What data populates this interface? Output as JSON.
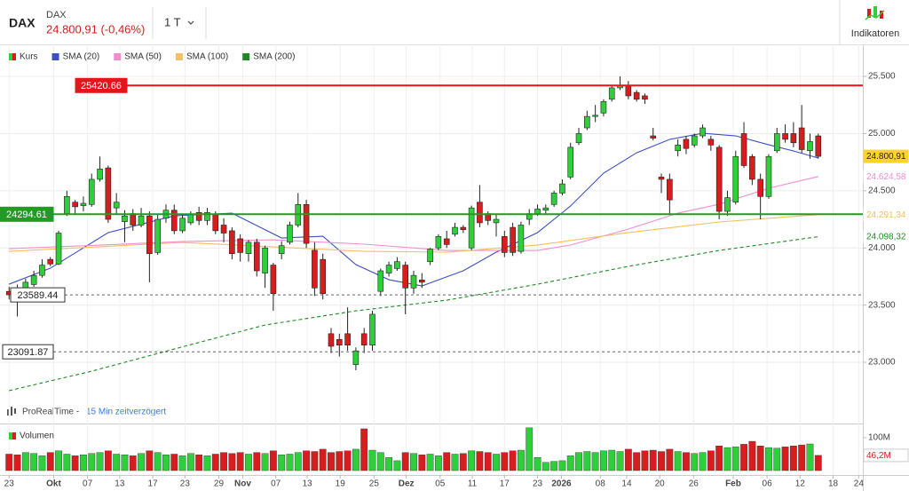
{
  "header": {
    "symbol": "DAX",
    "name": "DAX",
    "quote": "24.800,91 (-0,46%)",
    "interval": "1 T",
    "indicators_button": "Indikatoren"
  },
  "note": {
    "source": "ProRealTime -",
    "delay": "15 Min zeitverzögert"
  },
  "chart_data": [
    {
      "type": "candlestick",
      "name": "Kurs",
      "up_color": "#2fcf3c",
      "down_color": "#d71d1d",
      "x": [
        0,
        1,
        2,
        3,
        4,
        5,
        6,
        7,
        8,
        9,
        10,
        11,
        12,
        13,
        14,
        15,
        16,
        17,
        18,
        19,
        20,
        21,
        22,
        23,
        24,
        25,
        26,
        27,
        28,
        29,
        30,
        31,
        32,
        33,
        34,
        35,
        36,
        37,
        38,
        39,
        40,
        41,
        42,
        43,
        44,
        45,
        46,
        47,
        48,
        49,
        50,
        51,
        52,
        53,
        54,
        55,
        56,
        57,
        58,
        59,
        60,
        61,
        62,
        63,
        64,
        65,
        66,
        67,
        68,
        69,
        70,
        71,
        72,
        73,
        74,
        75,
        76,
        77,
        78,
        79,
        80,
        81,
        82,
        83,
        84,
        85,
        86,
        87,
        88,
        89,
        90,
        91,
        92,
        93,
        94,
        95,
        96,
        97,
        98
      ],
      "open": [
        23620,
        23640,
        23620,
        23680,
        23760,
        23900,
        23860,
        24300,
        24400,
        24370,
        24380,
        24600,
        24700,
        24350,
        24230,
        24300,
        24200,
        24280,
        23960,
        24260,
        24330,
        24150,
        24220,
        24310,
        24240,
        24290,
        24200,
        24150,
        24080,
        23950,
        24050,
        23780,
        23850,
        23950,
        24050,
        24200,
        24380,
        23980,
        23900,
        23250,
        23200,
        23250,
        22980,
        23250,
        23150,
        23620,
        23780,
        23820,
        23850,
        23650,
        23720,
        23880,
        24000,
        24080,
        24120,
        24180,
        24000,
        24400,
        24300,
        24220,
        24100,
        24180,
        23970,
        24250,
        24300,
        24330,
        24380,
        24480,
        24620,
        24920,
        25050,
        25150,
        25180,
        25300,
        25400,
        25420,
        25360,
        25330,
        24980,
        24620,
        24600,
        24850,
        24950,
        24900,
        24980,
        24950,
        24880,
        24320,
        24400,
        25000,
        24800,
        24600,
        24450,
        24850,
        25000,
        25000,
        25050,
        24850,
        24980
      ],
      "high": [
        23660,
        23680,
        23730,
        23800,
        23900,
        23920,
        24150,
        24500,
        24420,
        24450,
        24650,
        24800,
        24720,
        24480,
        24330,
        24340,
        24350,
        24320,
        24300,
        24380,
        24380,
        24300,
        24320,
        24360,
        24350,
        24320,
        24260,
        24180,
        24120,
        24070,
        24080,
        24020,
        23870,
        24060,
        24230,
        24480,
        24420,
        24050,
        23950,
        23300,
        23250,
        23480,
        23130,
        23300,
        23450,
        23820,
        23880,
        23920,
        23880,
        23800,
        23780,
        24000,
        24120,
        24150,
        24220,
        24200,
        24370,
        24550,
        24320,
        24300,
        24150,
        24220,
        24230,
        24340,
        24380,
        24380,
        24500,
        24600,
        24920,
        25050,
        25200,
        25250,
        25300,
        25420,
        25500,
        25460,
        25380,
        25350,
        25050,
        24650,
        24650,
        24950,
        24980,
        25000,
        25080,
        24980,
        24900,
        24500,
        24850,
        25100,
        24820,
        24650,
        24820,
        25050,
        25080,
        25100,
        25250,
        25000,
        25000
      ],
      "low": [
        23550,
        23400,
        23600,
        23660,
        23740,
        23840,
        23850,
        24280,
        24300,
        24320,
        24360,
        24580,
        24220,
        24300,
        24050,
        24150,
        24180,
        23700,
        23940,
        24220,
        24120,
        24130,
        24200,
        24200,
        24200,
        24120,
        24050,
        23900,
        23880,
        23880,
        23750,
        23650,
        23450,
        23900,
        24030,
        24180,
        24000,
        23580,
        23550,
        23080,
        23050,
        23100,
        22930,
        23080,
        23100,
        23580,
        23750,
        23800,
        23420,
        23600,
        23650,
        23850,
        23980,
        24000,
        24100,
        24130,
        23980,
        24180,
        24200,
        24100,
        23920,
        23930,
        23950,
        24200,
        24280,
        24300,
        24360,
        24460,
        24600,
        24900,
        25030,
        25100,
        25150,
        25280,
        25380,
        25300,
        25280,
        25260,
        24940,
        24480,
        24290,
        24800,
        24820,
        24880,
        24960,
        24850,
        24250,
        24280,
        24380,
        24700,
        24550,
        24250,
        24430,
        24830,
        24920,
        24880,
        24830,
        24780,
        24780
      ],
      "close": [
        23590,
        23620,
        23700,
        23760,
        23850,
        23860,
        24130,
        24450,
        24360,
        24390,
        24600,
        24690,
        24250,
        24400,
        24280,
        24200,
        24280,
        23950,
        24250,
        24330,
        24150,
        24260,
        24290,
        24240,
        24310,
        24150,
        24130,
        23950,
        23960,
        24050,
        23800,
        24000,
        23600,
        24020,
        24200,
        24380,
        24040,
        23650,
        23600,
        23140,
        23150,
        23150,
        23100,
        23150,
        23420,
        23800,
        23850,
        23880,
        23650,
        23760,
        23700,
        23990,
        24100,
        24030,
        24180,
        24160,
        24350,
        24220,
        24240,
        24250,
        23960,
        23960,
        24200,
        24300,
        24340,
        24350,
        24480,
        24560,
        24880,
        25000,
        25150,
        25160,
        25280,
        25400,
        25420,
        25330,
        25300,
        25300,
        24960,
        24600,
        24420,
        24900,
        24870,
        24980,
        25050,
        24900,
        24320,
        24440,
        24800,
        24720,
        24600,
        24450,
        24800,
        25000,
        24950,
        24920,
        24860,
        24930,
        24800.91
      ],
      "price_tag": {
        "value": 24800.91,
        "label": "24.800,91",
        "color": "#ffd426"
      },
      "series": [
        {
          "name": "SMA (20)",
          "color": "#3d4fc4",
          "dashed": false,
          "x": [
            0,
            5,
            12,
            20,
            27,
            33,
            38,
            42,
            46,
            50,
            55,
            59,
            64,
            68,
            72,
            76,
            80,
            84,
            88,
            92,
            95,
            98
          ],
          "values": [
            23683,
            23823,
            24134,
            24281,
            24304,
            24087,
            24102,
            23854,
            23722,
            23668,
            23800,
            23963,
            24134,
            24367,
            24654,
            24832,
            24949,
            25003,
            24980,
            24902,
            24848,
            24786
          ]
        },
        {
          "name": "SMA (50)",
          "color": "#f08fcf",
          "dashed": false,
          "x": [
            0,
            11,
            21,
            32,
            43,
            53,
            64,
            68,
            75,
            81,
            86,
            92,
            98
          ],
          "values": [
            23994,
            24025,
            24056,
            24071,
            24033,
            23978,
            23978,
            24025,
            24165,
            24304,
            24382,
            24522,
            24624.58
          ],
          "price_tag": {
            "value": 24624.58,
            "label": "24.624,58"
          }
        },
        {
          "name": "SMA (100)",
          "color": "#f6be62",
          "dashed": false,
          "x": [
            0,
            21,
            43,
            53,
            64,
            75,
            86,
            98
          ],
          "values": [
            23970,
            24048,
            23970,
            23963,
            24025,
            24134,
            24227,
            24291.34
          ],
          "price_tag": {
            "value": 24291.34,
            "label": "24.291,34"
          }
        },
        {
          "name": "SMA (200)",
          "color": "#1f8a25",
          "dashed": true,
          "x": [
            0,
            10,
            20,
            31,
            42,
            53,
            64,
            75,
            86,
            98
          ],
          "values": [
            22752,
            22922,
            23116,
            23326,
            23450,
            23543,
            23683,
            23839,
            23978,
            24098.32
          ],
          "price_tag": {
            "value": 24098.32,
            "label": "24.098,32"
          }
        }
      ],
      "levels": [
        {
          "value": 25420.66,
          "color": "#e8141b",
          "style": "solid"
        },
        {
          "value": 24294.61,
          "color": "#239a23",
          "style": "solid"
        },
        {
          "value": 23589.44,
          "color": "#666666",
          "style": "dashed"
        },
        {
          "value": 23091.87,
          "color": "#666666",
          "style": "dashed"
        }
      ],
      "xlim": [
        -1.1,
        103.4
      ],
      "xticks": [
        {
          "value": 0,
          "label": "23"
        },
        {
          "value": 5.4,
          "label": "Okt"
        },
        {
          "value": 9.5,
          "label": "07"
        },
        {
          "value": 13.4,
          "label": "13"
        },
        {
          "value": 17.4,
          "label": "17"
        },
        {
          "value": 21.3,
          "label": "23"
        },
        {
          "value": 25.4,
          "label": "29"
        },
        {
          "value": 28.3,
          "label": "Nov"
        },
        {
          "value": 32.3,
          "label": "07"
        },
        {
          "value": 36.1,
          "label": "13"
        },
        {
          "value": 40.1,
          "label": "19"
        },
        {
          "value": 44.2,
          "label": "25"
        },
        {
          "value": 48.1,
          "label": "Dez"
        },
        {
          "value": 52.2,
          "label": "05"
        },
        {
          "value": 56.1,
          "label": "11"
        },
        {
          "value": 60,
          "label": "17"
        },
        {
          "value": 64,
          "label": "23"
        },
        {
          "value": 66.9,
          "label": "2026"
        },
        {
          "value": 71.6,
          "label": "08"
        },
        {
          "value": 74.8,
          "label": "14"
        },
        {
          "value": 78.8,
          "label": "20"
        },
        {
          "value": 82.9,
          "label": "26"
        },
        {
          "value": 87.7,
          "label": "Feb"
        },
        {
          "value": 91.8,
          "label": "06"
        },
        {
          "value": 95.8,
          "label": "12"
        },
        {
          "value": 99.8,
          "label": "18"
        },
        {
          "value": 102.9,
          "label": "24"
        }
      ],
      "ylim": [
        22480,
        25780
      ],
      "yticks": [
        {
          "value": 23000,
          "label": "23.000"
        },
        {
          "value": 23500,
          "label": "23.500"
        },
        {
          "value": 24000,
          "label": "24.000"
        },
        {
          "value": 24500,
          "label": "24.500"
        },
        {
          "value": 25000,
          "label": "25.000"
        },
        {
          "value": 25500,
          "label": "25.500"
        }
      ],
      "grid": true
    },
    {
      "type": "bar",
      "title": "Volumen",
      "x": [
        0,
        1,
        2,
        3,
        4,
        5,
        6,
        7,
        8,
        9,
        10,
        11,
        12,
        13,
        14,
        15,
        16,
        17,
        18,
        19,
        20,
        21,
        22,
        23,
        24,
        25,
        26,
        27,
        28,
        29,
        30,
        31,
        32,
        33,
        34,
        35,
        36,
        37,
        38,
        39,
        40,
        41,
        42,
        43,
        44,
        45,
        46,
        47,
        48,
        49,
        50,
        51,
        52,
        53,
        54,
        55,
        56,
        57,
        58,
        59,
        60,
        61,
        62,
        63,
        64,
        65,
        66,
        67,
        68,
        69,
        70,
        71,
        72,
        73,
        74,
        75,
        76,
        77,
        78,
        79,
        80,
        81,
        82,
        83,
        84,
        85,
        86,
        87,
        88,
        89,
        90,
        91,
        92,
        93,
        94,
        95,
        96,
        97,
        98
      ],
      "values": [
        50,
        48,
        55,
        52,
        45,
        55,
        60,
        50,
        45,
        48,
        52,
        55,
        60,
        50,
        48,
        45,
        52,
        60,
        55,
        48,
        50,
        45,
        52,
        48,
        45,
        50,
        55,
        52,
        55,
        50,
        55,
        52,
        60,
        48,
        50,
        55,
        60,
        58,
        65,
        55,
        58,
        60,
        65,
        127,
        62,
        55,
        40,
        30,
        55,
        52,
        48,
        50,
        45,
        55,
        50,
        52,
        60,
        58,
        55,
        50,
        55,
        60,
        62,
        130,
        40,
        25,
        28,
        30,
        45,
        55,
        58,
        55,
        60,
        62,
        58,
        65,
        55,
        60,
        62,
        58,
        65,
        58,
        55,
        52,
        55,
        60,
        75,
        70,
        72,
        80,
        89,
        75,
        70,
        68,
        72,
        75,
        78,
        81,
        46.2
      ],
      "ylim": [
        0,
        135
      ],
      "yticks": [
        {
          "value": 100,
          "label": "100M"
        }
      ],
      "price_tag": {
        "value": 46.2,
        "label": "46,2M"
      }
    }
  ]
}
